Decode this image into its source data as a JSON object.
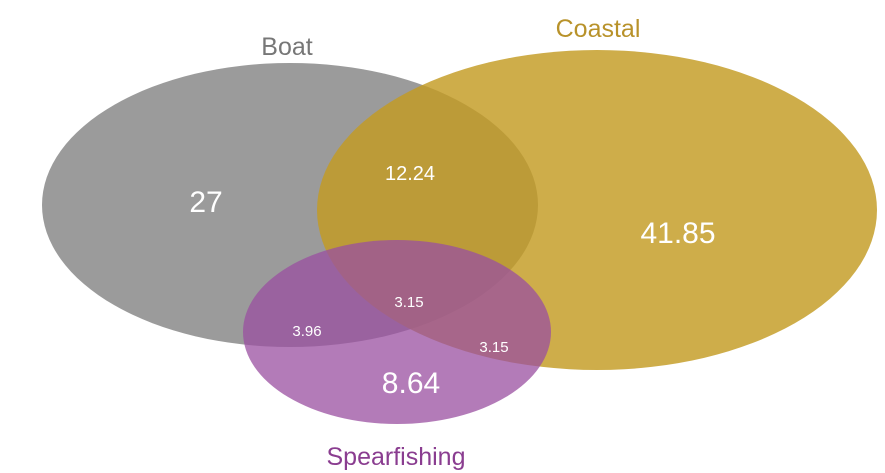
{
  "sets": [
    {
      "key": "boat",
      "name": "Boat",
      "color": "#8a8a8a"
    },
    {
      "key": "coastal",
      "name": "Coastal",
      "color": "#c39b22"
    },
    {
      "key": "spearfishing",
      "name": "Spearfishing",
      "color": "#9a4fa0"
    }
  ],
  "regions": {
    "boat_only": "27",
    "coastal_only": "41.85",
    "spearfishing_only": "8.64",
    "boat_coastal": "12.24",
    "boat_spearfishing": "3.96",
    "coastal_spearfishing": "3.15",
    "all_three": "3.15"
  },
  "label_colors": {
    "boat": "#777777",
    "coastal": "#b8922a",
    "spearfishing": "#8a3d90"
  }
}
